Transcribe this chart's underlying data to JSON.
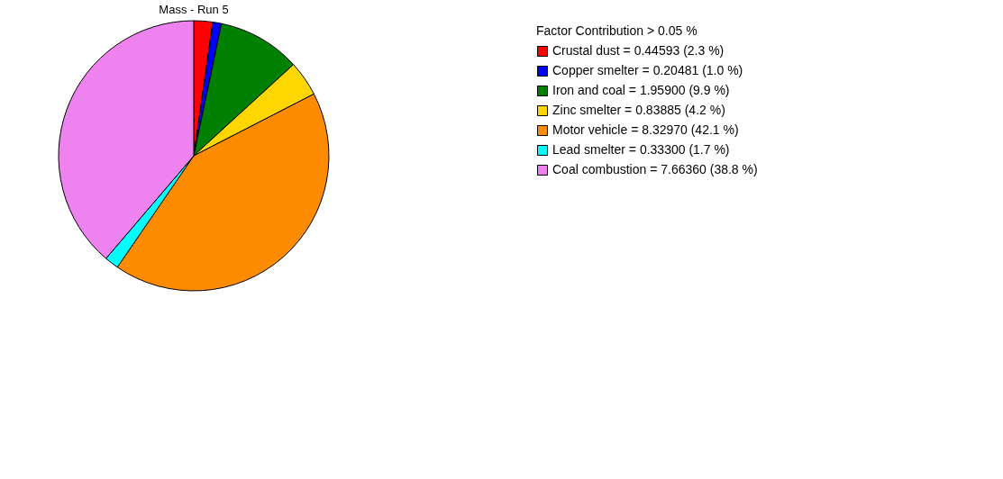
{
  "chart_data": {
    "type": "pie",
    "title": "Mass - Run 5",
    "legend_title": "Factor Contribution > 0.05 %",
    "legend": "right",
    "categories": [
      "Crustal dust",
      "Copper smelter",
      "Iron and coal",
      "Zinc smelter",
      "Motor vehicle",
      "Lead smelter",
      "Coal combustion"
    ],
    "values": [
      0.44593,
      0.20481,
      1.959,
      0.83885,
      8.3297,
      0.333,
      7.6636
    ],
    "value_labels": [
      "= 0.44593  (2.3 %)",
      "= 0.20481  (1.0 %)",
      "= 1.95900  (9.9 %)",
      "= 0.83885  (4.2 %)",
      "= 8.32970  (42.1 %)",
      "= 0.33300  (1.7 %)",
      "= 7.66360  (38.8 %)"
    ],
    "colors": [
      "#ff0000",
      "#0000ff",
      "#008000",
      "#ffd700",
      "#ff8c00",
      "#00ffff",
      "#ee82ee"
    ]
  }
}
